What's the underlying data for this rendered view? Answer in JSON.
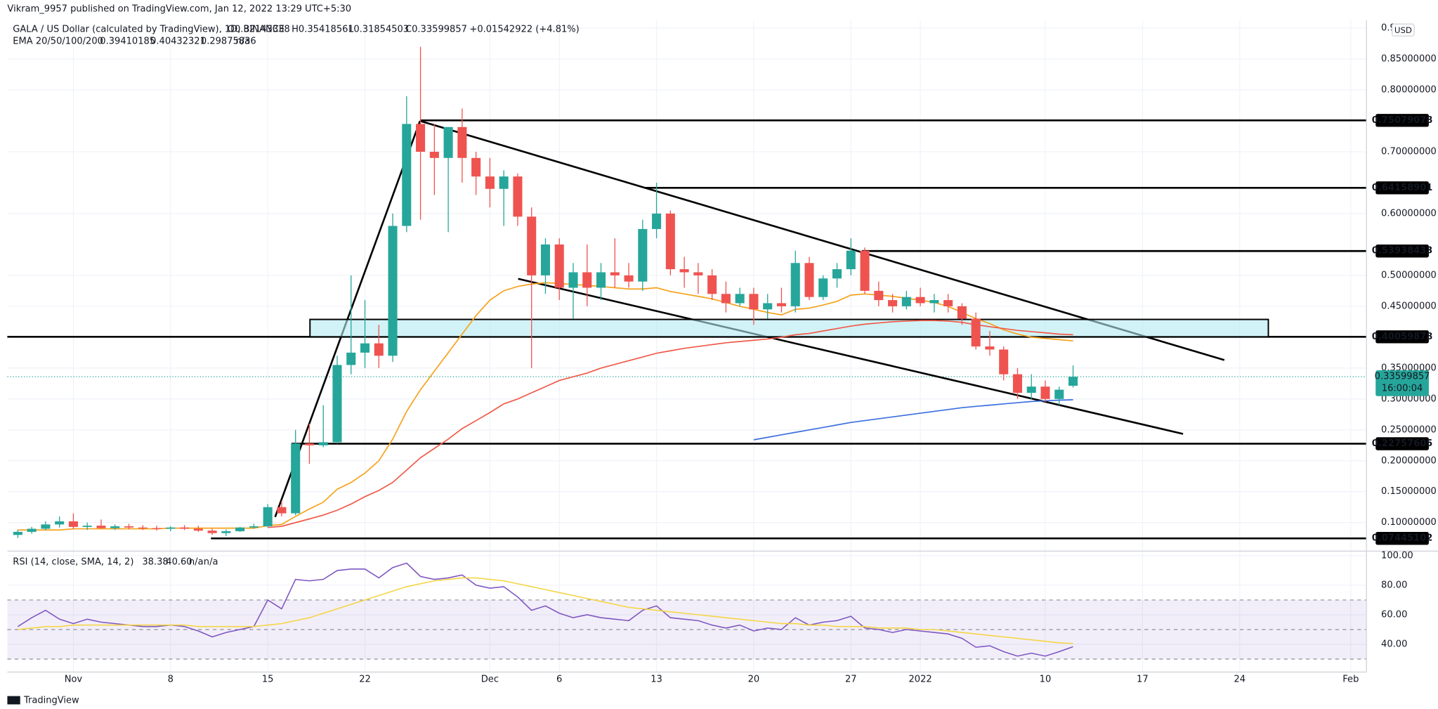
{
  "header": {
    "published": "Vikram_9957 published on TradingView.com, Jan 12, 2022 13:29 UTC+5:30",
    "symbol": "GALA / US Dollar (calculated by TradingView), 1D, BINANCE",
    "ohlc": [
      "O0.32143338",
      "H0.35418561",
      "L0.31854503",
      "C0.33599857",
      "+0.01542922 (+4.81%)"
    ],
    "currency": "USD",
    "logo": "TradingView"
  },
  "chart_data": [
    {
      "type": "candlestick",
      "up_color": "#26a69a",
      "down_color": "#ef5350",
      "ylim": [
        0.0538,
        0.9127
      ],
      "yticks": [
        {
          "value": 0.1,
          "label": "0.10000000"
        },
        {
          "value": 0.15,
          "label": "0.15000000"
        },
        {
          "value": 0.2,
          "label": "0.20000000"
        },
        {
          "value": 0.25,
          "label": "0.25000000"
        },
        {
          "value": 0.3,
          "label": "0.30000000"
        },
        {
          "value": 0.35,
          "label": "0.35000000"
        },
        {
          "value": 0.45,
          "label": "0.45000000"
        },
        {
          "value": 0.5,
          "label": "0.50000000"
        },
        {
          "value": 0.6,
          "label": "0.60000000"
        },
        {
          "value": 0.7,
          "label": "0.70000000"
        },
        {
          "value": 0.8,
          "label": "0.80000000"
        },
        {
          "value": 0.85,
          "label": "0.85000000"
        },
        {
          "value": 0.9,
          "label": "0.9"
        }
      ],
      "xticks": [
        {
          "value": "Nov 1",
          "label": "Nov"
        },
        {
          "value": "Nov 8",
          "label": "8"
        },
        {
          "value": "Nov 15",
          "label": "15"
        },
        {
          "value": "Nov 22",
          "label": "22"
        },
        {
          "value": "Dec 1",
          "label": "Dec"
        },
        {
          "value": "Dec 6",
          "label": "6"
        },
        {
          "value": "Dec 13",
          "label": "13"
        },
        {
          "value": "Dec 20",
          "label": "20"
        },
        {
          "value": "Dec 27",
          "label": "27"
        },
        {
          "value": "Jan 1",
          "label": "2022"
        },
        {
          "value": "Jan 10",
          "label": "10"
        },
        {
          "value": "Jan 17",
          "label": "17"
        },
        {
          "value": "Jan 24",
          "label": "24"
        },
        {
          "value": "Feb 1",
          "label": "Feb"
        }
      ],
      "grid": true,
      "categories": [
        "Oct 28",
        "Oct 29",
        "Oct 30",
        "Oct 31",
        "Nov 1",
        "Nov 2",
        "Nov 3",
        "Nov 4",
        "Nov 5",
        "Nov 6",
        "Nov 7",
        "Nov 8",
        "Nov 9",
        "Nov 10",
        "Nov 11",
        "Nov 12",
        "Nov 13",
        "Nov 14",
        "Nov 15",
        "Nov 16",
        "Nov 17",
        "Nov 18",
        "Nov 19",
        "Nov 20",
        "Nov 21",
        "Nov 22",
        "Nov 23",
        "Nov 24",
        "Nov 25",
        "Nov 26",
        "Nov 27",
        "Nov 28",
        "Nov 29",
        "Nov 30",
        "Dec 1",
        "Dec 2",
        "Dec 3",
        "Dec 4",
        "Dec 5",
        "Dec 6",
        "Dec 7",
        "Dec 8",
        "Dec 9",
        "Dec 10",
        "Dec 11",
        "Dec 12",
        "Dec 13",
        "Dec 14",
        "Dec 15",
        "Dec 16",
        "Dec 17",
        "Dec 18",
        "Dec 19",
        "Dec 20",
        "Dec 21",
        "Dec 22",
        "Dec 23",
        "Dec 24",
        "Dec 25",
        "Dec 26",
        "Dec 27",
        "Dec 28",
        "Dec 29",
        "Dec 30",
        "Dec 31",
        "Jan 1",
        "Jan 2",
        "Jan 3",
        "Jan 4",
        "Jan 5",
        "Jan 6",
        "Jan 7",
        "Jan 8",
        "Jan 9",
        "Jan 10",
        "Jan 11",
        "Jan 12"
      ],
      "candles": [
        [
          0.08,
          0.088,
          0.075,
          0.085
        ],
        [
          0.085,
          0.093,
          0.082,
          0.09
        ],
        [
          0.09,
          0.102,
          0.088,
          0.097
        ],
        [
          0.097,
          0.11,
          0.092,
          0.102
        ],
        [
          0.102,
          0.115,
          0.09,
          0.093
        ],
        [
          0.093,
          0.1,
          0.088,
          0.095
        ],
        [
          0.095,
          0.105,
          0.09,
          0.091
        ],
        [
          0.091,
          0.097,
          0.088,
          0.094
        ],
        [
          0.094,
          0.098,
          0.089,
          0.092
        ],
        [
          0.092,
          0.096,
          0.088,
          0.091
        ],
        [
          0.091,
          0.095,
          0.087,
          0.09
        ],
        [
          0.09,
          0.094,
          0.086,
          0.092
        ],
        [
          0.092,
          0.096,
          0.088,
          0.09
        ],
        [
          0.09,
          0.095,
          0.085,
          0.087
        ],
        [
          0.087,
          0.09,
          0.08,
          0.083
        ],
        [
          0.083,
          0.089,
          0.078,
          0.086
        ],
        [
          0.086,
          0.093,
          0.085,
          0.092
        ],
        [
          0.092,
          0.098,
          0.09,
          0.094
        ],
        [
          0.094,
          0.13,
          0.092,
          0.125
        ],
        [
          0.125,
          0.135,
          0.11,
          0.115
        ],
        [
          0.115,
          0.25,
          0.112,
          0.228
        ],
        [
          0.228,
          0.26,
          0.195,
          0.225
        ],
        [
          0.225,
          0.29,
          0.222,
          0.23
        ],
        [
          0.23,
          0.37,
          0.228,
          0.355
        ],
        [
          0.355,
          0.5,
          0.34,
          0.375
        ],
        [
          0.375,
          0.46,
          0.35,
          0.39
        ],
        [
          0.39,
          0.42,
          0.35,
          0.37
        ],
        [
          0.37,
          0.6,
          0.36,
          0.58
        ],
        [
          0.58,
          0.79,
          0.57,
          0.745
        ],
        [
          0.745,
          0.87,
          0.59,
          0.7
        ],
        [
          0.7,
          0.745,
          0.63,
          0.69
        ],
        [
          0.69,
          0.74,
          0.57,
          0.74
        ],
        [
          0.74,
          0.77,
          0.65,
          0.69
        ],
        [
          0.69,
          0.7,
          0.63,
          0.66
        ],
        [
          0.66,
          0.69,
          0.61,
          0.64
        ],
        [
          0.64,
          0.67,
          0.58,
          0.66
        ],
        [
          0.66,
          0.665,
          0.58,
          0.595
        ],
        [
          0.595,
          0.61,
          0.35,
          0.5
        ],
        [
          0.5,
          0.56,
          0.47,
          0.55
        ],
        [
          0.55,
          0.56,
          0.46,
          0.48
        ],
        [
          0.48,
          0.52,
          0.43,
          0.505
        ],
        [
          0.505,
          0.55,
          0.45,
          0.48
        ],
        [
          0.48,
          0.52,
          0.46,
          0.505
        ],
        [
          0.505,
          0.56,
          0.48,
          0.5
        ],
        [
          0.5,
          0.52,
          0.48,
          0.49
        ],
        [
          0.49,
          0.59,
          0.475,
          0.575
        ],
        [
          0.575,
          0.65,
          0.56,
          0.6
        ],
        [
          0.6,
          0.605,
          0.5,
          0.51
        ],
        [
          0.51,
          0.53,
          0.48,
          0.505
        ],
        [
          0.505,
          0.52,
          0.47,
          0.5
        ],
        [
          0.5,
          0.51,
          0.46,
          0.47
        ],
        [
          0.47,
          0.49,
          0.44,
          0.455
        ],
        [
          0.455,
          0.48,
          0.45,
          0.47
        ],
        [
          0.47,
          0.48,
          0.42,
          0.445
        ],
        [
          0.445,
          0.47,
          0.43,
          0.455
        ],
        [
          0.455,
          0.48,
          0.44,
          0.45
        ],
        [
          0.45,
          0.54,
          0.44,
          0.52
        ],
        [
          0.52,
          0.53,
          0.46,
          0.465
        ],
        [
          0.465,
          0.5,
          0.46,
          0.495
        ],
        [
          0.495,
          0.52,
          0.48,
          0.51
        ],
        [
          0.51,
          0.56,
          0.5,
          0.54
        ],
        [
          0.54,
          0.545,
          0.47,
          0.475
        ],
        [
          0.475,
          0.49,
          0.45,
          0.46
        ],
        [
          0.46,
          0.47,
          0.44,
          0.45
        ],
        [
          0.45,
          0.475,
          0.445,
          0.465
        ],
        [
          0.465,
          0.48,
          0.45,
          0.455
        ],
        [
          0.455,
          0.47,
          0.44,
          0.46
        ],
        [
          0.46,
          0.47,
          0.44,
          0.45
        ],
        [
          0.45,
          0.455,
          0.42,
          0.43
        ],
        [
          0.43,
          0.44,
          0.38,
          0.385
        ],
        [
          0.385,
          0.41,
          0.37,
          0.38
        ],
        [
          0.38,
          0.385,
          0.33,
          0.34
        ],
        [
          0.34,
          0.35,
          0.3,
          0.31
        ],
        [
          0.31,
          0.34,
          0.3,
          0.32
        ],
        [
          0.32,
          0.33,
          0.295,
          0.3
        ],
        [
          0.3,
          0.32,
          0.29,
          0.315
        ],
        [
          0.32143338,
          0.35418561,
          0.31854503,
          0.33599857
        ]
      ],
      "series": [
        {
          "color": "#f7a21b",
          "values": [
            0.088,
            0.088,
            0.088,
            0.088,
            0.09,
            0.09,
            0.09,
            0.09,
            0.09,
            0.09,
            0.09,
            0.091,
            0.091,
            0.091,
            0.091,
            0.091,
            0.091,
            0.091,
            0.095,
            0.097,
            0.11,
            0.122,
            0.133,
            0.154,
            0.165,
            0.18,
            0.2,
            0.235,
            0.28,
            0.315,
            0.345,
            0.375,
            0.405,
            0.435,
            0.46,
            0.475,
            0.482,
            0.486,
            0.488,
            0.487,
            0.485,
            0.484,
            0.482,
            0.48,
            0.478,
            0.478,
            0.48,
            0.474,
            0.47,
            0.466,
            0.462,
            0.456,
            0.45,
            0.445,
            0.44,
            0.436,
            0.445,
            0.447,
            0.452,
            0.458,
            0.468,
            0.47,
            0.468,
            0.466,
            0.463,
            0.46,
            0.456,
            0.45,
            0.44,
            0.43,
            0.422,
            0.412,
            0.405,
            0.4,
            0.398,
            0.396,
            0.394
          ]
        },
        {
          "color": "#f05a4a",
          "values": [
            null,
            null,
            null,
            null,
            null,
            null,
            null,
            null,
            null,
            null,
            null,
            null,
            null,
            null,
            null,
            null,
            null,
            null,
            0.092,
            0.094,
            0.1,
            0.106,
            0.112,
            0.12,
            0.13,
            0.142,
            0.152,
            0.165,
            0.185,
            0.205,
            0.22,
            0.235,
            0.252,
            0.265,
            0.278,
            0.292,
            0.3,
            0.31,
            0.32,
            0.33,
            0.336,
            0.342,
            0.35,
            0.356,
            0.362,
            0.368,
            0.374,
            0.378,
            0.382,
            0.385,
            0.388,
            0.391,
            0.393,
            0.395,
            0.397,
            0.4,
            0.404,
            0.406,
            0.41,
            0.414,
            0.418,
            0.421,
            0.423,
            0.425,
            0.426,
            0.427,
            0.427,
            0.426,
            0.424,
            0.42,
            0.417,
            0.414,
            0.411,
            0.409,
            0.407,
            0.405,
            0.404
          ]
        },
        {
          "color": "#3d6fe0",
          "values": [
            null,
            null,
            null,
            null,
            null,
            null,
            null,
            null,
            null,
            null,
            null,
            null,
            null,
            null,
            null,
            null,
            null,
            null,
            null,
            null,
            null,
            null,
            null,
            null,
            null,
            null,
            null,
            null,
            null,
            null,
            null,
            null,
            null,
            null,
            null,
            null,
            null,
            null,
            null,
            null,
            null,
            null,
            null,
            null,
            null,
            null,
            null,
            null,
            null,
            null,
            null,
            null,
            null,
            0.234,
            0.238,
            0.242,
            0.246,
            0.25,
            0.254,
            0.258,
            0.262,
            0.265,
            0.268,
            0.271,
            0.274,
            0.277,
            0.28,
            0.283,
            0.286,
            0.288,
            0.29,
            0.292,
            0.294,
            0.296,
            0.297,
            0.298,
            0.2988
          ]
        }
      ],
      "legend_title": "EMA 20/50/100/200",
      "legend_values": [
        "0.39410185",
        "0.40432321",
        "0.29875836",
        "n/a"
      ],
      "levels": [
        {
          "value": 0.75079078,
          "label": "0.75079078"
        },
        {
          "value": 0.64158901,
          "label": "0.64158901"
        },
        {
          "value": 0.53938433,
          "label": "0.53938433"
        },
        {
          "value": 0.40059878,
          "label": "0.40059878"
        },
        {
          "value": 0.22757605,
          "label": "0.22757605"
        },
        {
          "value": 0.07445102,
          "label": "0.07445102"
        }
      ],
      "last_price": {
        "value": 0.33599857,
        "label": "0.33599857"
      },
      "countdown": "16:00:04"
    },
    {
      "type": "line",
      "ylim": [
        21.2,
        103.1
      ],
      "yticks": [
        {
          "value": 40,
          "label": "40.00"
        },
        {
          "value": 60,
          "label": "60.00"
        },
        {
          "value": 80,
          "label": "80.00"
        },
        {
          "value": 100,
          "label": "100.00"
        }
      ],
      "bands": [
        30,
        50,
        70
      ],
      "series": [
        {
          "color": "#7e57c2",
          "values": [
            52,
            58,
            63,
            57,
            54,
            57,
            55,
            54,
            53,
            52,
            52,
            53,
            52,
            49,
            45,
            48,
            50,
            52,
            70,
            64,
            84,
            83,
            84,
            90,
            91,
            91,
            85,
            92,
            95,
            86,
            84,
            85,
            87,
            80,
            78,
            79,
            72,
            63,
            66,
            61,
            58,
            60,
            58,
            57,
            56,
            63,
            66,
            58,
            57,
            56,
            53,
            51,
            53,
            49,
            51,
            50,
            58,
            53,
            55,
            56,
            59,
            51,
            50,
            48,
            50,
            49,
            48,
            47,
            44,
            38,
            39,
            35,
            32,
            34,
            32,
            35,
            38.38
          ]
        },
        {
          "color": "#f5d544",
          "values": [
            50,
            51,
            52,
            52,
            53,
            53,
            53,
            53,
            53,
            53,
            53,
            53,
            53,
            52,
            52,
            52,
            52,
            52,
            53,
            54,
            56,
            58,
            61,
            64,
            67,
            70,
            73,
            76,
            79,
            81,
            83,
            84,
            85,
            85,
            84,
            83,
            81,
            79,
            77,
            75,
            73,
            71,
            69,
            67,
            65,
            64,
            63,
            62,
            61,
            60,
            59,
            58,
            57,
            56,
            55,
            54,
            54,
            53,
            53,
            52,
            52,
            52,
            51,
            51,
            51,
            50,
            50,
            49,
            48,
            47,
            46,
            45,
            44,
            43,
            42,
            41,
            40.6
          ]
        }
      ],
      "legend_title": "RSI (14, close, SMA, 14, 2)",
      "legend_values": [
        "38.38",
        "40.60",
        "n/a",
        "n/a"
      ]
    }
  ]
}
